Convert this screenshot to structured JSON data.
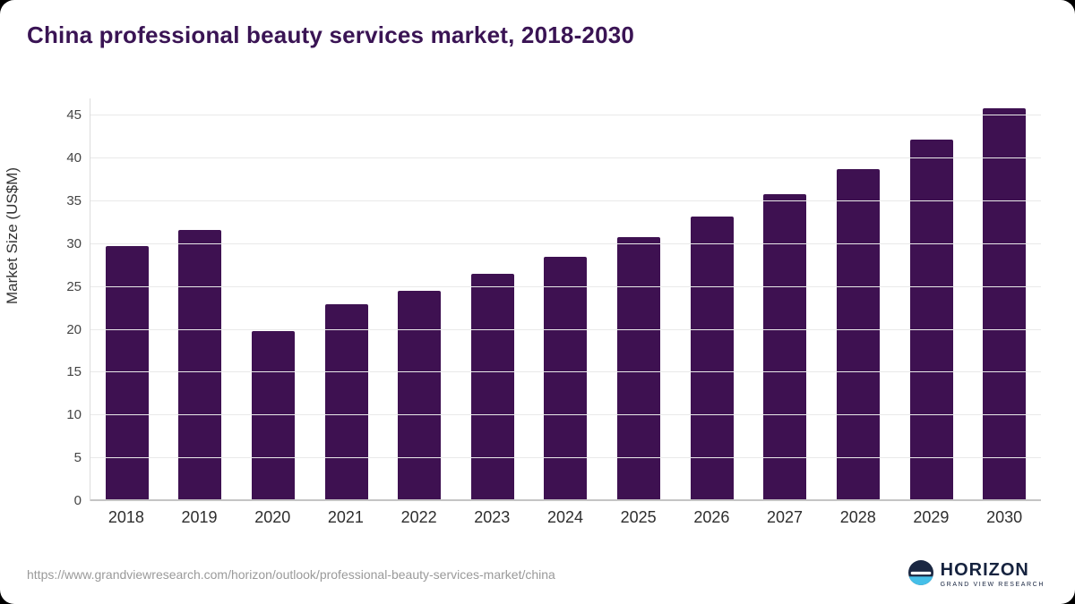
{
  "title": "China professional beauty services market, 2018-2030",
  "footer": {
    "source_url": "https://www.grandviewresearch.com/horizon/outlook/professional-beauty-services-market/china",
    "brand_name": "HORIZON",
    "brand_sub": "GRAND VIEW RESEARCH"
  },
  "colors": {
    "bar": "#3e1151",
    "title": "#3a1454",
    "grid": "#e9e9e9",
    "axis_text": "#444444",
    "footer_text": "#9a9a9a",
    "logo_navy": "#1a2742",
    "logo_blue": "#45bfe8"
  },
  "chart_data": {
    "type": "bar",
    "title": "China professional beauty services market, 2018-2030",
    "categories": [
      "2018",
      "2019",
      "2020",
      "2021",
      "2022",
      "2023",
      "2024",
      "2025",
      "2026",
      "2027",
      "2028",
      "2029",
      "2030"
    ],
    "values": [
      29.8,
      31.7,
      19.8,
      23.0,
      24.5,
      26.5,
      28.5,
      30.8,
      33.2,
      35.8,
      38.8,
      42.2,
      45.9
    ],
    "xlabel": "",
    "ylabel": "Market Size (US$M)",
    "ylim": [
      0,
      47
    ],
    "yticks": [
      0,
      5,
      10,
      15,
      20,
      25,
      30,
      35,
      40,
      45
    ],
    "grid": true,
    "legend": false,
    "bar_color": "#3e1151"
  }
}
